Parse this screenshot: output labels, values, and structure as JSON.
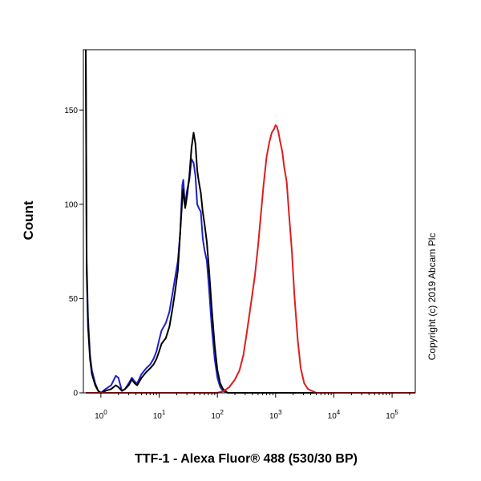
{
  "chart_data": {
    "type": "line",
    "title": "",
    "xlabel": "TTF-1 - Alexa Fluor® 488 (530/30 BP)",
    "ylabel": "Count",
    "x_scale": "log",
    "xlim": [
      0.5,
      250000
    ],
    "ylim": [
      0,
      182
    ],
    "grid": false,
    "legend": "none",
    "x_ticks": [
      {
        "value": 1,
        "base": "10",
        "exp": "0"
      },
      {
        "value": 10,
        "base": "10",
        "exp": "1"
      },
      {
        "value": 100,
        "base": "10",
        "exp": "2"
      },
      {
        "value": 1000,
        "base": "10",
        "exp": "3"
      },
      {
        "value": 10000,
        "base": "10",
        "exp": "4"
      },
      {
        "value": 100000,
        "base": "10",
        "exp": "5"
      }
    ],
    "y_ticks": [
      {
        "value": 0,
        "label": "0"
      },
      {
        "value": 50,
        "label": "50"
      },
      {
        "value": 100,
        "label": "100"
      },
      {
        "value": 150,
        "label": "150"
      }
    ],
    "annotation": "Copyright (c) 2019 Abcam Plc",
    "series": [
      {
        "color": "#2020c8",
        "x": [
          0.55,
          0.57,
          0.6,
          0.65,
          0.7,
          0.8,
          0.9,
          1.0,
          1.2,
          1.5,
          1.8,
          2.0,
          2.3,
          2.6,
          3.0,
          3.4,
          3.8,
          4.2,
          5,
          6,
          7,
          8,
          9,
          10,
          11,
          13,
          15,
          17,
          19,
          21,
          23,
          25,
          26,
          27,
          28,
          30,
          33,
          36,
          39,
          42,
          45,
          48,
          52,
          56,
          60,
          66,
          72,
          80,
          90,
          100,
          112,
          125,
          150,
          200,
          1000,
          10000,
          250000
        ],
        "y": [
          182,
          70,
          40,
          20,
          12,
          5,
          1,
          0,
          2,
          4,
          9,
          8,
          1,
          2,
          5,
          8,
          6,
          5,
          10,
          13,
          15,
          18,
          22,
          28,
          33,
          37,
          43,
          53,
          62,
          70,
          85,
          110,
          113,
          105,
          100,
          107,
          113,
          124,
          122,
          115,
          100,
          98,
          96,
          82,
          76,
          70,
          55,
          35,
          18,
          8,
          3,
          1,
          0,
          0,
          0,
          0,
          0
        ]
      },
      {
        "color": "#000000",
        "x": [
          0.55,
          0.57,
          0.6,
          0.65,
          0.7,
          0.8,
          0.9,
          1.0,
          1.2,
          1.5,
          1.8,
          2.0,
          2.3,
          2.6,
          3.0,
          3.4,
          3.8,
          4.2,
          5,
          6,
          7,
          8,
          9,
          10,
          11,
          13,
          15,
          17,
          19,
          21,
          23,
          25,
          26,
          27,
          28,
          30,
          33,
          36,
          39,
          42,
          45,
          48,
          52,
          56,
          60,
          66,
          72,
          80,
          90,
          100,
          112,
          125,
          150,
          200,
          1000,
          10000,
          250000
        ],
        "y": [
          182,
          65,
          35,
          18,
          10,
          4,
          1,
          0,
          1,
          2,
          4,
          3,
          1,
          2,
          4,
          7,
          5,
          4,
          8,
          11,
          13,
          15,
          18,
          22,
          26,
          29,
          35,
          45,
          55,
          65,
          85,
          103,
          108,
          102,
          98,
          104,
          115,
          130,
          138,
          132,
          118,
          112,
          106,
          96,
          90,
          80,
          65,
          45,
          25,
          12,
          5,
          2,
          0,
          0,
          0,
          0,
          0
        ]
      },
      {
        "color": "#dc1e1e",
        "x": [
          0.55,
          100,
          130,
          160,
          200,
          240,
          280,
          320,
          380,
          440,
          500,
          560,
          620,
          700,
          780,
          860,
          940,
          1000,
          1060,
          1120,
          1200,
          1300,
          1400,
          1550,
          1700,
          1900,
          2100,
          2400,
          2700,
          3100,
          3600,
          4200,
          5000,
          6000,
          250000
        ],
        "y": [
          0,
          0,
          1,
          3,
          7,
          12,
          20,
          32,
          48,
          62,
          78,
          95,
          110,
          125,
          133,
          138,
          140,
          142,
          141,
          138,
          133,
          128,
          120,
          112,
          95,
          75,
          52,
          28,
          13,
          5,
          2,
          1,
          0,
          0,
          0
        ]
      }
    ]
  }
}
